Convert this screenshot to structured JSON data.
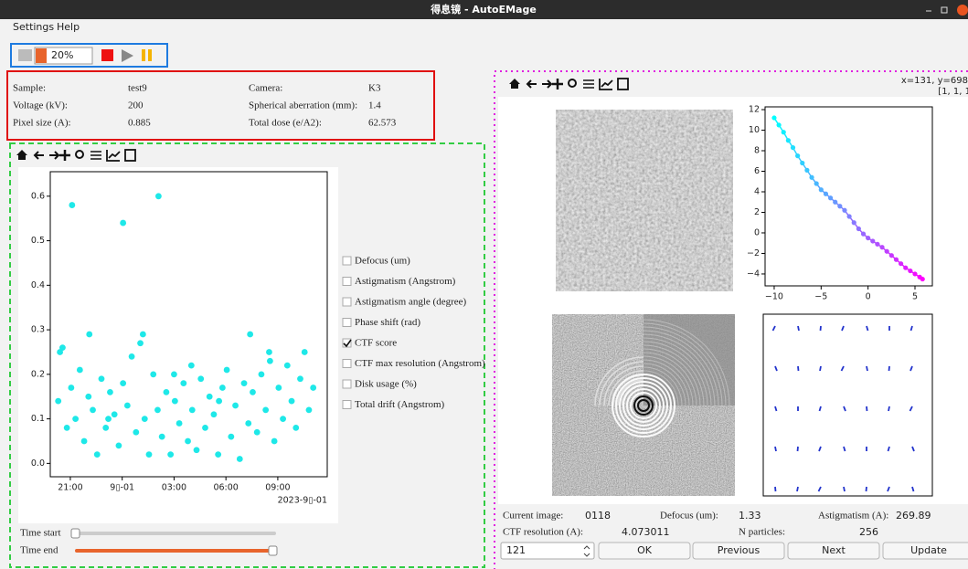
{
  "window": {
    "title": "得息镜 - AutoEMage"
  },
  "menu": [
    "Settings",
    "Help"
  ],
  "toolbar": {
    "progress": "20%"
  },
  "info": {
    "rows": [
      [
        "Sample:",
        "test9",
        "Camera:",
        "K3"
      ],
      [
        "Voltage (kV):",
        "200",
        "Spherical aberration (mm):",
        "1.4"
      ],
      [
        "Pixel size (A):",
        "0.885",
        "Total dose (e/A2):",
        "62.573"
      ]
    ]
  },
  "series_options": [
    {
      "label": "Defocus (um)",
      "checked": false
    },
    {
      "label": "Astigmatism (Angstrom)",
      "checked": false
    },
    {
      "label": "Astigmatism angle (degree)",
      "checked": false
    },
    {
      "label": "Phase shift (rad)",
      "checked": false
    },
    {
      "label": "CTF score",
      "checked": true
    },
    {
      "label": "CTF max resolution (Angstrom)",
      "checked": false
    },
    {
      "label": "Disk usage (%)",
      "checked": false
    },
    {
      "label": "Total drift (Angstrom)",
      "checked": false
    }
  ],
  "sliders": [
    "Time start",
    "Time end"
  ],
  "cursor": {
    "coords": "x=131, y=698",
    "value": "[1, 1, 1"
  },
  "chart_data": [
    {
      "type": "scatter",
      "color": "#1ee8e8",
      "x": [
        20.3,
        20.55,
        20.8,
        21.05,
        21.3,
        21.55,
        21.8,
        22.05,
        22.3,
        22.55,
        22.8,
        23.05,
        23.3,
        23.55,
        23.8,
        24.05,
        24.3,
        24.55,
        24.8,
        25.05,
        25.3,
        25.55,
        25.8,
        26.05,
        26.3,
        26.55,
        26.8,
        27.05,
        27.3,
        27.55,
        27.8,
        28.05,
        28.3,
        28.55,
        28.8,
        29.05,
        29.3,
        29.55,
        29.8,
        30.05,
        30.3,
        30.55,
        30.8,
        31.05,
        31.3,
        31.55,
        31.8,
        32.05,
        32.3,
        32.55,
        32.8,
        33.05,
        33.3,
        33.55,
        33.8,
        34.05,
        34.3,
        34.55,
        34.8,
        35.05,
        21.1,
        22.1,
        24.05,
        25.2,
        26.1,
        31.4,
        20.4,
        27.0,
        28.0,
        32.5,
        23.2,
        29.6
      ],
      "values": [
        0.14,
        0.26,
        0.08,
        0.17,
        0.1,
        0.21,
        0.05,
        0.15,
        0.12,
        0.02,
        0.19,
        0.08,
        0.16,
        0.11,
        0.04,
        0.18,
        0.13,
        0.24,
        0.07,
        0.27,
        0.1,
        0.02,
        0.2,
        0.12,
        0.06,
        0.16,
        0.02,
        0.14,
        0.09,
        0.18,
        0.05,
        0.12,
        0.03,
        0.19,
        0.08,
        0.15,
        0.11,
        0.02,
        0.17,
        0.21,
        0.06,
        0.13,
        0.01,
        0.18,
        0.09,
        0.16,
        0.07,
        0.2,
        0.12,
        0.23,
        0.05,
        0.17,
        0.1,
        0.22,
        0.14,
        0.08,
        0.19,
        0.25,
        0.12,
        0.17,
        0.58,
        0.29,
        0.54,
        0.29,
        0.6,
        0.29,
        0.25,
        0.2,
        0.22,
        0.25,
        0.1,
        0.14
      ],
      "xlim": [
        19.84,
        35.86
      ],
      "ylim": [
        -0.03,
        0.655
      ],
      "xticks": [
        {
          "value": 21,
          "label": "21:00"
        },
        {
          "value": 24,
          "label": "9▯-01"
        },
        {
          "value": 27,
          "label": "03:00"
        },
        {
          "value": 30,
          "label": "06:00"
        },
        {
          "value": 33,
          "label": "09:00"
        }
      ],
      "yticks": [
        {
          "value": 0,
          "label": "0.0"
        },
        0.1,
        0.2,
        0.3,
        0.4,
        0.5,
        0.6
      ],
      "offset_text": "2023-9▯-01"
    },
    {
      "type": "line",
      "colormap": "cool",
      "x": [
        -10,
        -9.5,
        -9,
        -8.5,
        -8,
        -7.5,
        -7,
        -6.5,
        -6,
        -5.5,
        -5,
        -4.5,
        -4,
        -3.5,
        -3,
        -2.5,
        -2,
        -1.5,
        -1,
        -0.5,
        0,
        0.5,
        1,
        1.5,
        2,
        2.5,
        3,
        3.5,
        4,
        4.5,
        5,
        5.5,
        5.8
      ],
      "values": [
        11.2,
        10.5,
        9.8,
        9.0,
        8.3,
        7.5,
        6.8,
        6.1,
        5.4,
        4.8,
        4.2,
        3.8,
        3.4,
        3.0,
        2.6,
        2.2,
        1.6,
        1.0,
        0.4,
        -0.1,
        -0.5,
        -0.8,
        -1.1,
        -1.4,
        -1.8,
        -2.2,
        -2.6,
        -3.0,
        -3.4,
        -3.7,
        -4.0,
        -4.3,
        -4.5
      ],
      "xlim": [
        -10.97,
        6.85
      ],
      "ylim": [
        -5.16,
        12.27
      ],
      "xticks": [
        {
          "value": -10,
          "label": "−10"
        },
        {
          "value": -5,
          "label": "−5"
        },
        0,
        5
      ],
      "yticks": [
        {
          "value": -4,
          "label": "−4"
        },
        {
          "value": -2,
          "label": "−2"
        },
        0,
        2,
        4,
        6,
        8,
        10,
        12
      ]
    }
  ],
  "status": {
    "current_image": {
      "label": "Current image:",
      "value": "0118"
    },
    "defocus": {
      "label": "Defocus (um):",
      "value": "1.33"
    },
    "astigmatism": {
      "label": "Astigmatism (A):",
      "value": "269.89"
    },
    "ctf_resolution": {
      "label": "CTF resolution (A):",
      "value": "4.073011"
    },
    "n_particles": {
      "label": "N particles:",
      "value": "256"
    }
  },
  "controls": {
    "spin": "121",
    "buttons": [
      "OK",
      "Previous",
      "Next",
      "Update"
    ]
  }
}
